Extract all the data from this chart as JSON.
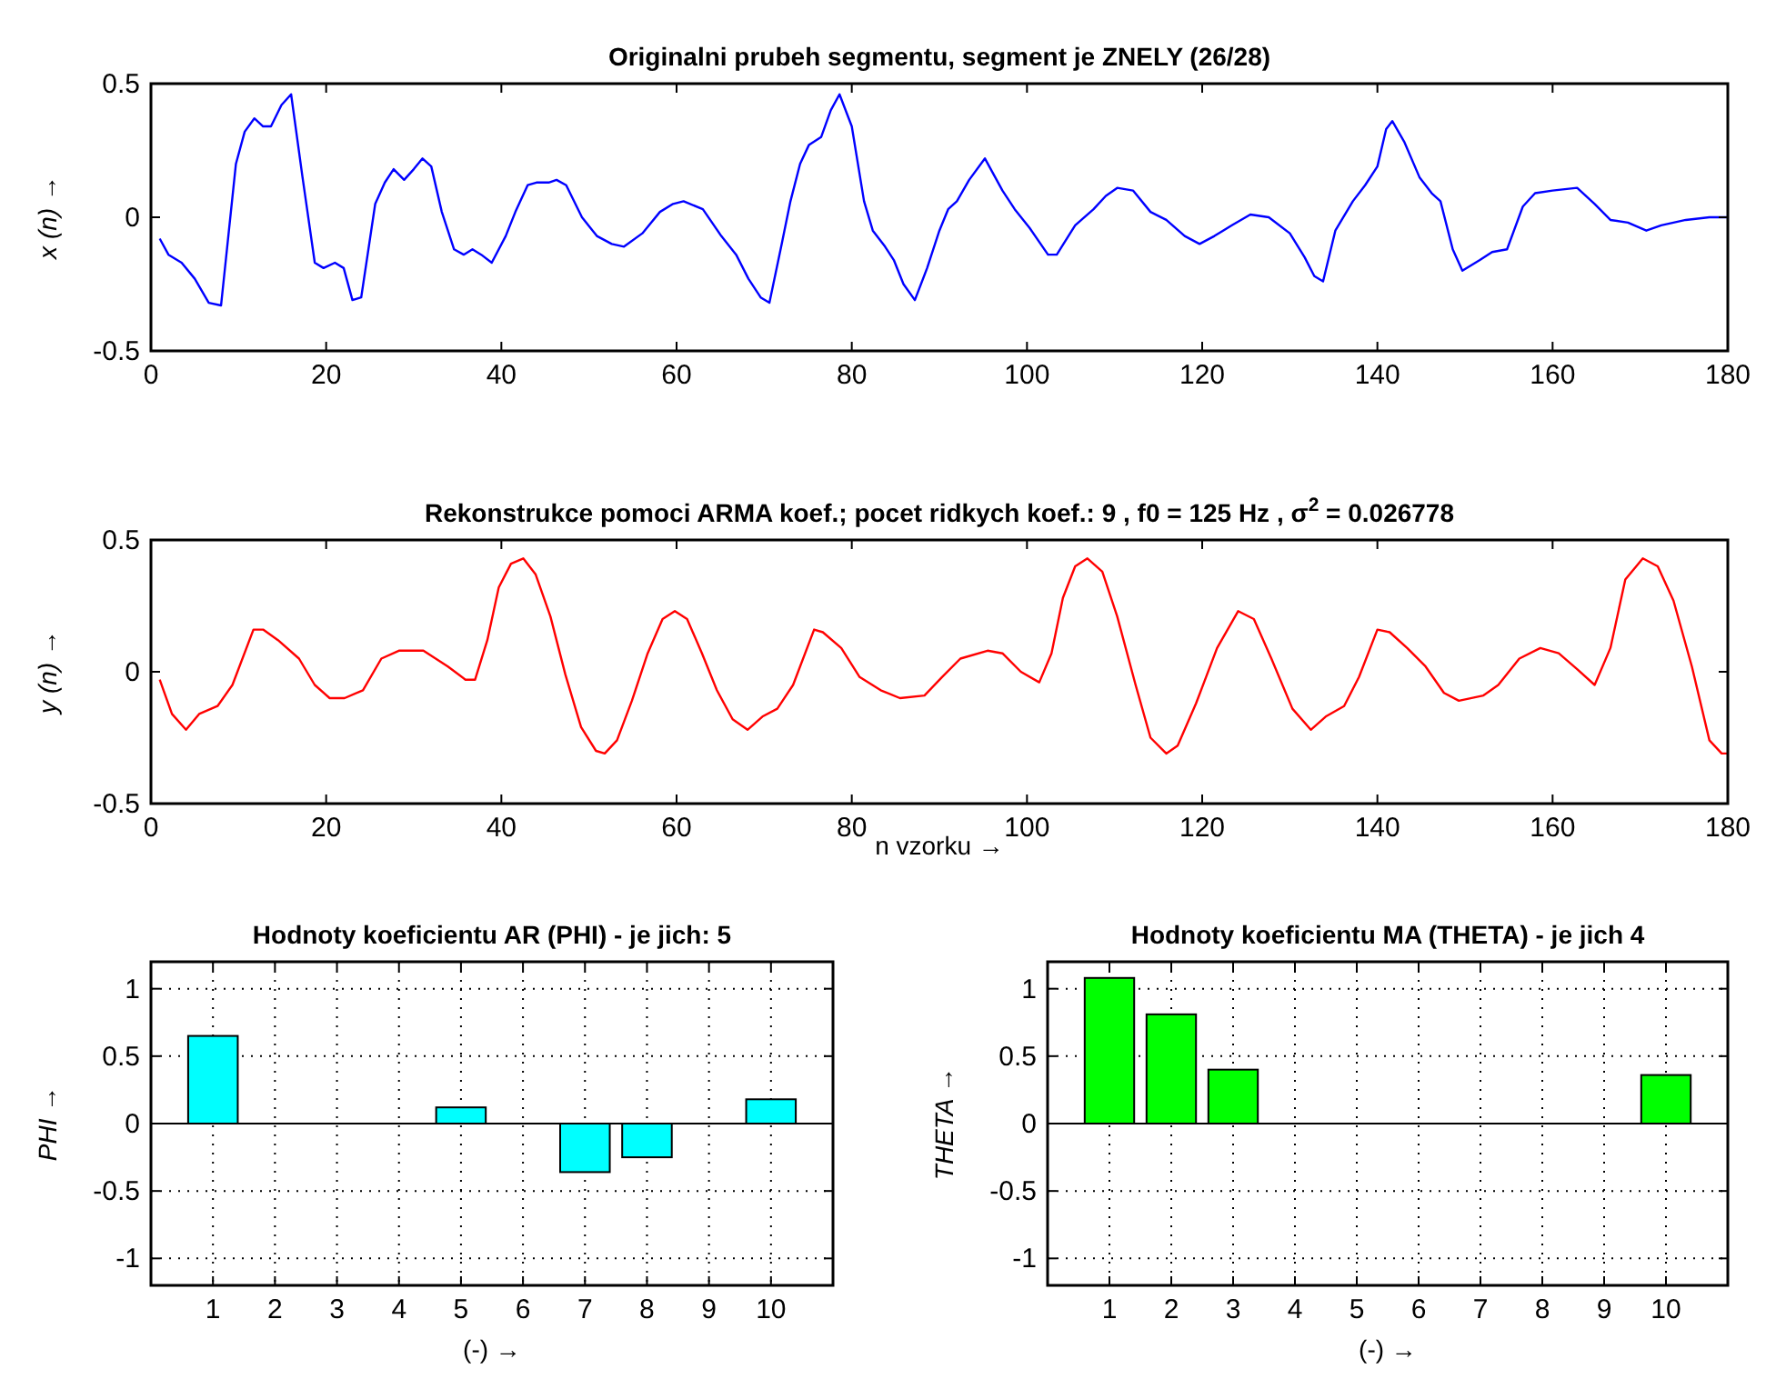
{
  "chart_data": [
    {
      "type": "line",
      "title": "Originalni prubeh segmentu, segment je  ZNELY  (26/28)",
      "ylabel": "x (n) →",
      "xlim": [
        0,
        180
      ],
      "xticks": [
        0,
        20,
        40,
        60,
        80,
        100,
        120,
        140,
        160,
        180
      ],
      "ylim": [
        -0.5,
        0.5
      ],
      "yticks": [
        -0.5,
        0,
        0.5
      ],
      "x": [
        1,
        2,
        3.5,
        5,
        6.6,
        8,
        9.7,
        10.7,
        11.8,
        12.8,
        13.7,
        14.9,
        16,
        17.3,
        18.7,
        19.7,
        21,
        22,
        23,
        24,
        25.6,
        26.7,
        27.7,
        28.9,
        30,
        31,
        32,
        33.2,
        34.6,
        35.7,
        36.7,
        37.7,
        38.9,
        40.5,
        41.6,
        43,
        44,
        45.4,
        46.3,
        47.4,
        49.2,
        50.9,
        52.6,
        54,
        56.1,
        58.1,
        59.6,
        60.8,
        63,
        65.1,
        66.8,
        68.2,
        69.6,
        70.6,
        72,
        73,
        74.1,
        75.1,
        76.5,
        77.6,
        78.6,
        80,
        81.4,
        82.4,
        83.8,
        84.8,
        85.9,
        87.2,
        88.6,
        90,
        91,
        92,
        93.4,
        95.2,
        97.2,
        98.6,
        100.3,
        102.4,
        103.4,
        105.5,
        107.6,
        109,
        110.3,
        112.1,
        114.1,
        115.9,
        118,
        119.7,
        121.4,
        123.4,
        125.5,
        127.6,
        130,
        131.7,
        132.8,
        133.8,
        135.2,
        137.2,
        138.6,
        140,
        141,
        141.7,
        143.1,
        144.8,
        146.2,
        147.2,
        148.6,
        149.7,
        151.7,
        153.1,
        154.8,
        156.6,
        158,
        160,
        162.8,
        164.8,
        166.6,
        168.6,
        170.7,
        172.4,
        175.2,
        177.9,
        180
      ],
      "series": [
        {
          "color": "#0000ff",
          "values": [
            -0.08,
            -0.14,
            -0.17,
            -0.23,
            -0.32,
            -0.33,
            0.2,
            0.32,
            0.37,
            0.34,
            0.34,
            0.42,
            0.46,
            0.15,
            -0.17,
            -0.19,
            -0.17,
            -0.19,
            -0.31,
            -0.3,
            0.05,
            0.13,
            0.18,
            0.14,
            0.18,
            0.22,
            0.19,
            0.02,
            -0.12,
            -0.14,
            -0.12,
            -0.14,
            -0.17,
            -0.07,
            0.02,
            0.12,
            0.13,
            0.13,
            0.14,
            0.12,
            0,
            -0.07,
            -0.1,
            -0.11,
            -0.06,
            0.02,
            0.05,
            0.06,
            0.03,
            -0.07,
            -0.14,
            -0.23,
            -0.3,
            -0.32,
            -0.1,
            0.06,
            0.2,
            0.27,
            0.3,
            0.4,
            0.46,
            0.34,
            0.06,
            -0.05,
            -0.11,
            -0.16,
            -0.25,
            -0.31,
            -0.19,
            -0.05,
            0.03,
            0.06,
            0.14,
            0.22,
            0.1,
            0.03,
            -0.04,
            -0.14,
            -0.14,
            -0.03,
            0.03,
            0.08,
            0.11,
            0.1,
            0.02,
            -0.01,
            -0.07,
            -0.1,
            -0.07,
            -0.03,
            0.01,
            0,
            -0.06,
            -0.15,
            -0.22,
            -0.24,
            -0.05,
            0.06,
            0.12,
            0.19,
            0.33,
            0.36,
            0.28,
            0.15,
            0.09,
            0.06,
            -0.12,
            -0.2,
            -0.16,
            -0.13,
            -0.12,
            0.04,
            0.09,
            0.1,
            0.11,
            0.05,
            -0.01,
            -0.02,
            -0.05,
            -0.03,
            -0.01,
            0,
            0
          ]
        }
      ]
    },
    {
      "type": "line",
      "title": "Rekonstrukce pomoci ARMA koef.;   pocet ridkych koef.:  9 , f0 = 125 Hz ,  σ$^{2}$ = 0.026778",
      "xlabel": "n vzorku →",
      "ylabel": "y (n) →",
      "xlim": [
        0,
        180
      ],
      "xticks": [
        0,
        20,
        40,
        60,
        80,
        100,
        120,
        140,
        160,
        180
      ],
      "ylim": [
        -0.5,
        0.5
      ],
      "yticks": [
        -0.5,
        0,
        0.5
      ],
      "x": [
        1,
        2.4,
        4,
        5.5,
        7.6,
        9.3,
        11.7,
        12.8,
        14.5,
        16.9,
        18.7,
        20.4,
        22.1,
        24.2,
        26.3,
        28.3,
        31.1,
        33.9,
        35.9,
        37,
        38.4,
        39.7,
        41.1,
        42.5,
        43.9,
        45.6,
        47.3,
        49.1,
        50.8,
        51.8,
        53.2,
        54.9,
        56.7,
        58.4,
        59.8,
        61.2,
        62.9,
        64.6,
        66.4,
        68.1,
        69.8,
        71.5,
        73.3,
        75.7,
        76.7,
        78.8,
        80.9,
        83.3,
        85.5,
        88.3,
        90.3,
        92.4,
        95.5,
        97.2,
        99.3,
        101.4,
        102.8,
        104.1,
        105.5,
        106.9,
        108.6,
        110.3,
        112.4,
        114.1,
        115.9,
        117.2,
        119.3,
        121.7,
        124.1,
        125.9,
        127.9,
        130.3,
        132.4,
        134.1,
        136.2,
        137.9,
        140,
        141.4,
        143.4,
        145.5,
        147.6,
        149.3,
        152.1,
        153.8,
        156.2,
        158.6,
        160.7,
        162.8,
        164.8,
        166.6,
        168.3,
        170.3,
        172,
        173.8,
        175.9,
        177.9,
        179.3,
        180
      ],
      "series": [
        {
          "color": "#ff0000",
          "values": [
            -0.03,
            -0.16,
            -0.22,
            -0.16,
            -0.13,
            -0.05,
            0.16,
            0.16,
            0.12,
            0.05,
            -0.05,
            -0.1,
            -0.1,
            -0.07,
            0.05,
            0.08,
            0.08,
            0.02,
            -0.03,
            -0.03,
            0.12,
            0.32,
            0.41,
            0.43,
            0.37,
            0.21,
            -0.01,
            -0.21,
            -0.3,
            -0.31,
            -0.26,
            -0.11,
            0.07,
            0.2,
            0.23,
            0.2,
            0.07,
            -0.07,
            -0.18,
            -0.22,
            -0.17,
            -0.14,
            -0.05,
            0.16,
            0.15,
            0.09,
            -0.02,
            -0.07,
            -0.1,
            -0.09,
            -0.02,
            0.05,
            0.08,
            0.07,
            0,
            -0.04,
            0.07,
            0.28,
            0.4,
            0.43,
            0.38,
            0.21,
            -0.05,
            -0.25,
            -0.31,
            -0.28,
            -0.12,
            0.09,
            0.23,
            0.2,
            0.05,
            -0.14,
            -0.22,
            -0.17,
            -0.13,
            -0.02,
            0.16,
            0.15,
            0.09,
            0.02,
            -0.08,
            -0.11,
            -0.09,
            -0.05,
            0.05,
            0.09,
            0.07,
            0.01,
            -0.05,
            0.09,
            0.35,
            0.43,
            0.4,
            0.27,
            0.02,
            -0.26,
            -0.31,
            -0.31
          ]
        }
      ]
    },
    {
      "type": "bar",
      "title": "Hodnoty koeficientu AR (PHI) - je jich:  5",
      "xlabel": "(-) →",
      "ylabel": "PHI  →",
      "grid": true,
      "xlim": [
        0,
        11
      ],
      "xticks": [
        1,
        2,
        3,
        4,
        5,
        6,
        7,
        8,
        9,
        10
      ],
      "ylim": [
        -1.2,
        1.2
      ],
      "yticks": [
        -1,
        -0.5,
        0,
        0.5,
        1
      ],
      "x": [
        1,
        2,
        3,
        4,
        5,
        6,
        7,
        8,
        9,
        10
      ],
      "series": [
        {
          "color": "#00ffff",
          "values": [
            0.65,
            0,
            0,
            0,
            0.12,
            0,
            -0.36,
            -0.25,
            0,
            0.18
          ]
        }
      ]
    },
    {
      "type": "bar",
      "title": "Hodnoty koeficientu MA (THETA) - je jich  4",
      "xlabel": "(-) →",
      "ylabel": "THETA  →",
      "grid": true,
      "xlim": [
        0,
        11
      ],
      "xticks": [
        1,
        2,
        3,
        4,
        5,
        6,
        7,
        8,
        9,
        10
      ],
      "ylim": [
        -1.2,
        1.2
      ],
      "yticks": [
        -1,
        -0.5,
        0,
        0.5,
        1
      ],
      "x": [
        1,
        2,
        3,
        4,
        5,
        6,
        7,
        8,
        9,
        10
      ],
      "series": [
        {
          "color": "#00ff00",
          "values": [
            1.08,
            0.81,
            0.4,
            0,
            0,
            0,
            0,
            0,
            0,
            0.36
          ]
        }
      ]
    }
  ]
}
